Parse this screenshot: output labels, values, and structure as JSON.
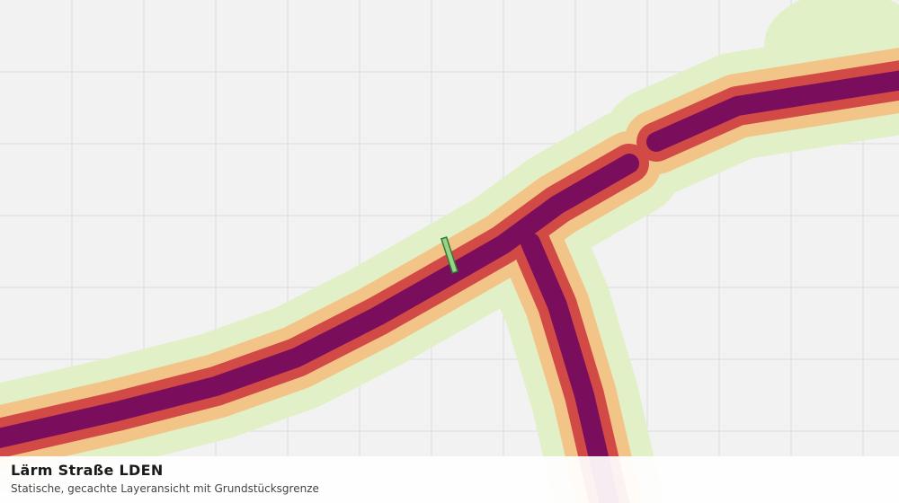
{
  "caption": {
    "title": "Lärm Straße LDEN",
    "subtitle": "Statische, gecachte Layeransicht mit Grundstücksgrenze"
  }
}
